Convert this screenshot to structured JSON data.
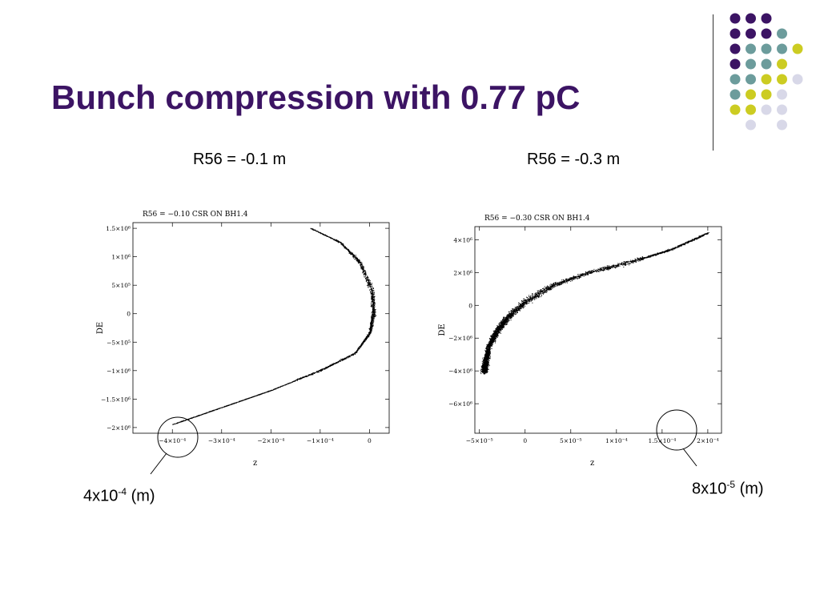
{
  "slide": {
    "title": "Bunch compression with 0.77 pC",
    "subtitle_left": "R56 = -0.1 m",
    "subtitle_right": "R56 = -0.3 m",
    "callout_left": {
      "base": "4x10",
      "exp": "-4",
      "unit": " (m)"
    },
    "callout_right": {
      "base": "8x10",
      "exp": "-5",
      "unit": " (m)"
    }
  },
  "decor": {
    "dot_colors": [
      "#3c1464",
      "#6c9c9c",
      "#cccc22",
      "#d8d8e8"
    ],
    "title_color": "#3c1464"
  },
  "chart_data": [
    {
      "type": "scatter",
      "title": "R56 = −0.10 CSR ON BH1.4",
      "xlabel": "z",
      "ylabel": "DE",
      "xlim": [
        -0.00048,
        4e-05
      ],
      "ylim": [
        -2100000,
        1600000
      ],
      "xticks": [
        {
          "value": -0.0004,
          "label": "−4×10⁻⁴"
        },
        {
          "value": -0.0003,
          "label": "−3×10⁻⁴"
        },
        {
          "value": -0.0002,
          "label": "−2×10⁻⁴"
        },
        {
          "value": -0.0001,
          "label": "−1×10⁻⁴"
        },
        {
          "value": 0,
          "label": "0"
        }
      ],
      "yticks": [
        {
          "value": 1500000,
          "label": "1.5×10⁶"
        },
        {
          "value": 1000000,
          "label": "1×10⁶"
        },
        {
          "value": 500000,
          "label": "5×10⁵"
        },
        {
          "value": 0,
          "label": "0"
        },
        {
          "value": -500000,
          "label": "−5×10⁵"
        },
        {
          "value": -1000000,
          "label": "−1×10⁶"
        },
        {
          "value": -1500000,
          "label": "−1.5×10⁶"
        },
        {
          "value": -2000000,
          "label": "−2×10⁶"
        }
      ],
      "curve": {
        "x": [
          -0.00012,
          -6e-05,
          -2e-05,
          5e-06,
          8e-06,
          0.0,
          -3e-05,
          -0.0001,
          -0.0002,
          -0.0003,
          -0.0004
        ],
        "y": [
          1500000,
          1250000,
          900000,
          400000,
          0,
          -350000,
          -700000,
          -1000000,
          -1350000,
          -1650000,
          -1950000
        ]
      },
      "grid": false
    },
    {
      "type": "scatter",
      "title": "R56 = −0.30 CSR ON BH1.4",
      "xlabel": "z",
      "ylabel": "DE",
      "xlim": [
        -5.5e-05,
        0.000215
      ],
      "ylim": [
        -7800000,
        4800000
      ],
      "xticks": [
        {
          "value": -5e-05,
          "label": "−5×10⁻⁵"
        },
        {
          "value": 0,
          "label": "0"
        },
        {
          "value": 5e-05,
          "label": "5×10⁻⁵"
        },
        {
          "value": 0.0001,
          "label": "1×10⁻⁴"
        },
        {
          "value": 0.00015,
          "label": "1.5×10⁻⁴"
        },
        {
          "value": 0.0002,
          "label": "2×10⁻⁴"
        }
      ],
      "yticks": [
        {
          "value": 4000000,
          "label": "4×10⁶"
        },
        {
          "value": 2000000,
          "label": "2×10⁶"
        },
        {
          "value": 0,
          "label": "0"
        },
        {
          "value": -2000000,
          "label": "−2×10⁶"
        },
        {
          "value": -4000000,
          "label": "−4×10⁶"
        },
        {
          "value": -6000000,
          "label": "−6×10⁶"
        }
      ],
      "curve": {
        "x": [
          -4.5e-05,
          -4e-05,
          -3e-05,
          -2e-05,
          0.0,
          3e-05,
          7e-05,
          0.00012,
          0.00016,
          0.0002
        ],
        "y": [
          -4000000,
          -2500000,
          -1500000,
          -800000,
          200000,
          1200000,
          2000000,
          2700000,
          3400000,
          4400000
        ]
      },
      "grid": false
    }
  ]
}
